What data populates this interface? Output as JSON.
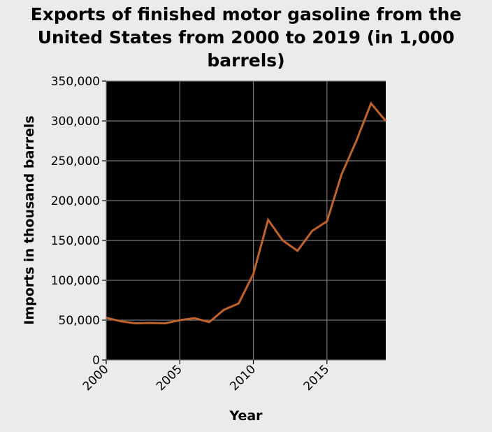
{
  "chart_data": {
    "type": "line",
    "title": "Exports of finished motor gasoline from the United States from 2000 to 2019 (in 1,000 barrels)",
    "xlabel": "Year",
    "ylabel": "Imports in thousand barrels",
    "xlim": [
      2000,
      2019
    ],
    "ylim": [
      0,
      350000
    ],
    "xticks": [
      2000,
      2005,
      2010,
      2015
    ],
    "yticks": [
      0,
      50000,
      100000,
      150000,
      200000,
      250000,
      300000,
      350000
    ],
    "xtick_labels": [
      "2000",
      "2005",
      "2010",
      "2015"
    ],
    "ytick_labels": [
      "0",
      "50,000",
      "100,000",
      "150,000",
      "200,000",
      "250,000",
      "300,000",
      "350,000"
    ],
    "grid": true,
    "series": [
      {
        "color": "#c0622a",
        "x": [
          2000,
          2001,
          2002,
          2003,
          2004,
          2005,
          2006,
          2007,
          2008,
          2009,
          2010,
          2011,
          2012,
          2013,
          2014,
          2015,
          2016,
          2017,
          2018,
          2019
        ],
        "y": [
          53000,
          48500,
          46000,
          46500,
          46000,
          50000,
          52500,
          47500,
          63000,
          71000,
          108000,
          176000,
          150000,
          137000,
          162000,
          174000,
          233000,
          275000,
          322000,
          300000
        ]
      }
    ]
  }
}
